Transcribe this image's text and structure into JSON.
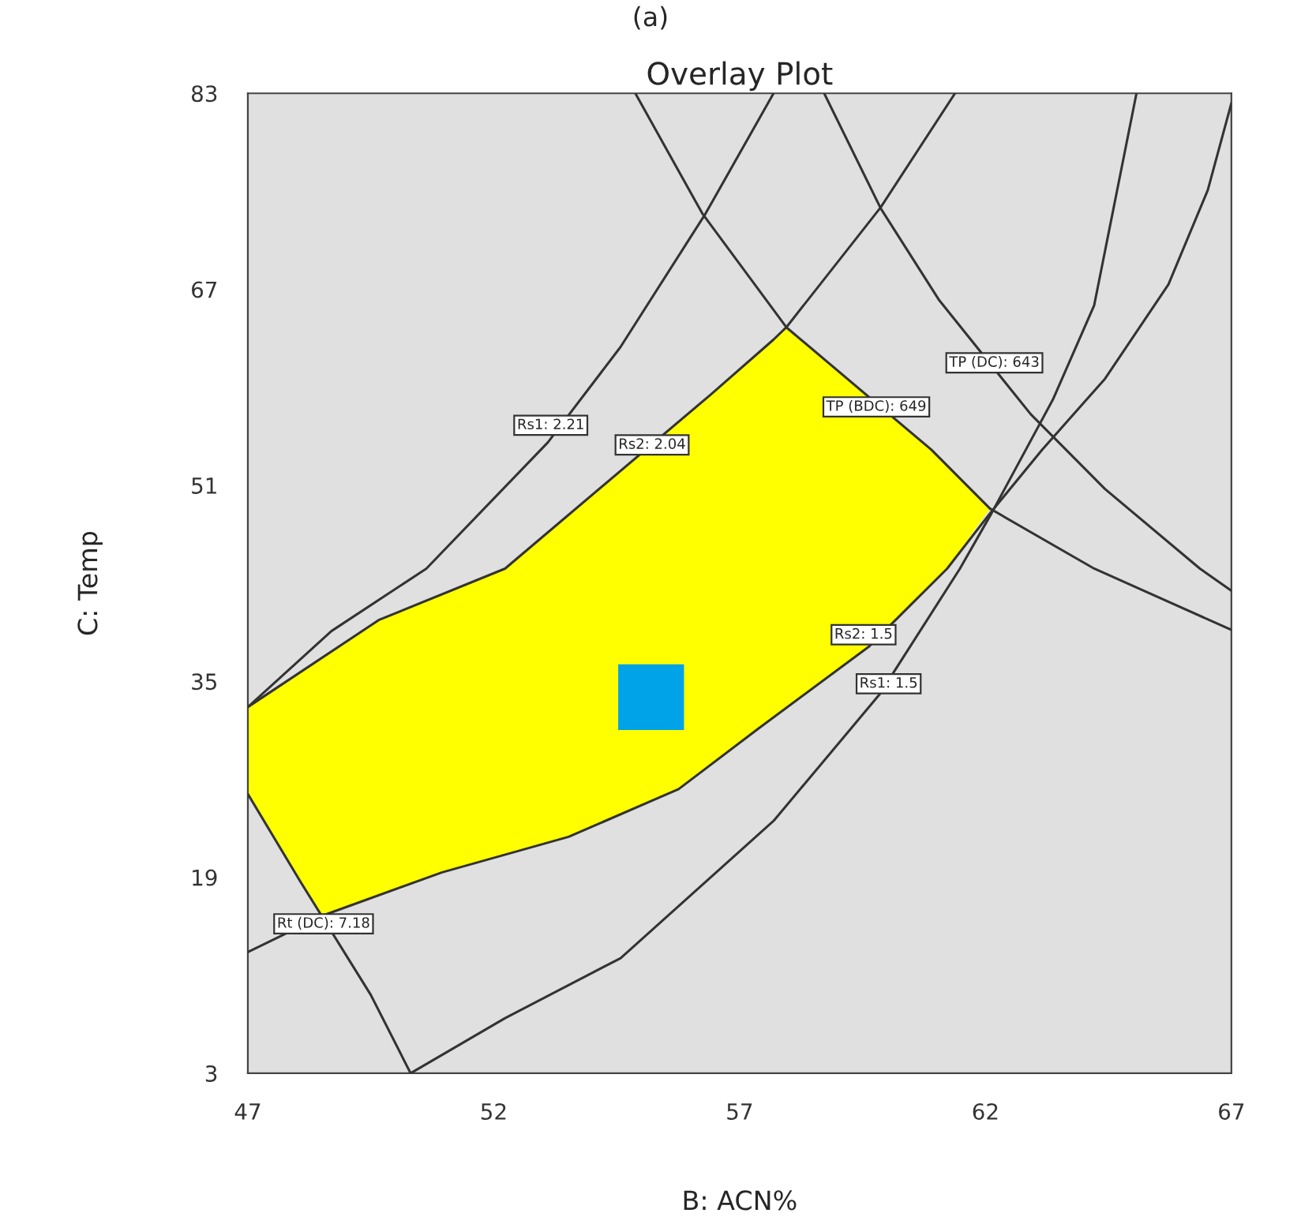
{
  "chart_data": {
    "type": "line",
    "title": "Overlay Plot",
    "xlabel": "B: ACN%",
    "ylabel": "C: Temp",
    "xlim": [
      47,
      67
    ],
    "xticks": [
      47,
      52,
      57,
      62,
      67
    ],
    "ylim": [
      3,
      83
    ],
    "yticks": [
      3,
      19,
      35,
      51,
      67,
      83
    ],
    "grid": false,
    "legend": false,
    "marker": "none",
    "line_style": "solid",
    "series": [
      {
        "type": "area",
        "color": "#ffff00",
        "x": [
          47,
          47,
          48.06,
          48.48,
          50.95,
          53.52,
          55.76,
          57.37,
          59.62,
          61.22,
          62.09,
          60.9,
          57.95,
          56.41,
          52.23,
          49.66,
          47
        ],
        "values": [
          32.9,
          25.8,
          18.7,
          15.9,
          19.4,
          22.3,
          26.2,
          31.1,
          37.8,
          44.2,
          49.1,
          53.9,
          63.9,
          58.4,
          44.2,
          40.0,
          32.9
        ]
      },
      {
        "color": "#333333",
        "x": [
          47,
          48.7,
          50.63,
          53.1,
          54.58,
          56.31,
          57.69
        ],
        "values": [
          32.9,
          39.1,
          44.2,
          54.5,
          62.3,
          73.2,
          83.0
        ]
      },
      {
        "color": "#333333",
        "x": [
          47,
          49.66,
          52.23,
          56.41,
          57.69,
          57.95,
          59.87,
          61.38
        ],
        "values": [
          32.9,
          40.0,
          44.2,
          58.4,
          62.9,
          63.9,
          73.7,
          83.0
        ]
      },
      {
        "color": "#333333",
        "x": [
          54.88,
          56.24,
          57.95,
          60.9,
          62.09,
          64.21,
          67.0
        ],
        "values": [
          83.0,
          73.2,
          63.9,
          53.9,
          49.1,
          44.2,
          39.2
        ]
      },
      {
        "color": "#333333",
        "x": [
          58.72,
          59.87,
          61.06,
          62.92,
          64.43,
          66.36,
          67.0
        ],
        "values": [
          83.0,
          73.6,
          66.1,
          56.8,
          50.7,
          44.2,
          42.4
        ]
      },
      {
        "color": "#333333",
        "x": [
          47,
          48.54,
          50.95,
          53.52,
          55.76,
          57.37,
          59.62,
          61.22,
          62.09,
          63.15,
          64.43,
          65.72,
          66.52,
          67.0
        ],
        "values": [
          12.9,
          15.9,
          19.4,
          22.3,
          26.2,
          31.1,
          37.8,
          44.2,
          48.7,
          53.9,
          59.7,
          67.4,
          75.1,
          82.2
        ]
      },
      {
        "color": "#333333",
        "x": [
          50.31,
          52.23,
          54.58,
          57.69,
          59.84,
          61.48,
          62.12,
          63.37,
          64.21,
          65.07
        ],
        "values": [
          3.0,
          7.5,
          12.4,
          23.6,
          33.9,
          44.2,
          48.7,
          58.0,
          65.7,
          83.0
        ]
      },
      {
        "color": "#333333",
        "x": [
          47,
          48.06,
          49.5,
          50.31
        ],
        "values": [
          25.8,
          18.7,
          9.4,
          3.0
        ]
      },
      {
        "type": "scatter",
        "color": "#00a2e8",
        "marker": "square",
        "x": [
          55.2
        ],
        "values": [
          33.7
        ]
      }
    ],
    "annotations": [
      {
        "text": "Rs1: 2.21",
        "x": 53.16,
        "y": 55.9
      },
      {
        "text": "Rs2: 2.04",
        "x": 55.22,
        "y": 54.3
      },
      {
        "text": "TP (DC): 643",
        "x": 62.18,
        "y": 61.0
      },
      {
        "text": "TP (BDC): 649",
        "x": 59.78,
        "y": 57.4
      },
      {
        "text": "Rs2: 1.5",
        "x": 59.52,
        "y": 38.8
      },
      {
        "text": "Rs1: 1.5",
        "x": 60.03,
        "y": 34.8
      },
      {
        "text": "Rt (DC): 7.18",
        "x": 48.54,
        "y": 15.2
      },
      "(a)"
    ]
  }
}
